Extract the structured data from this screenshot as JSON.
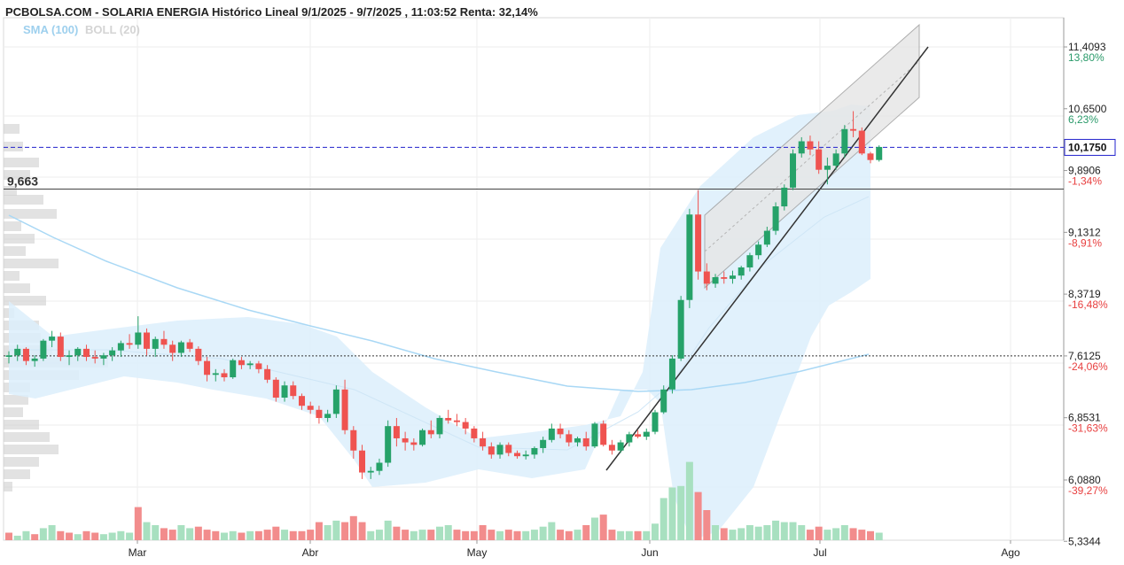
{
  "header": {
    "title": "PCBOLSA.COM - SOLARIA ENERGIA Histórico Lineal 9/1/2025 - 9/7/2025 , 11:03:52 Renta: 32,14%",
    "legend_sma": "SMA (100)",
    "legend_boll": "BOLL (20)"
  },
  "colors": {
    "up": "#26a269",
    "down": "#ef5350",
    "vol_up": "#a8e0c0",
    "vol_down": "#f28c8c",
    "boll_fill": "#dceefb",
    "sma": "#a9d8f5",
    "current_line": "#2222cc"
  },
  "chart_data": {
    "type": "candlestick",
    "y_axis": {
      "ticks": [
        {
          "value": 11.4093,
          "label": "11,4093",
          "pct": "13,80%",
          "dir": "pos"
        },
        {
          "value": 10.65,
          "label": "10,6500",
          "pct": "6,23%",
          "dir": "pos"
        },
        {
          "value": 9.8906,
          "label": "9,8906",
          "pct": "-1,34%",
          "dir": "neg"
        },
        {
          "value": 9.1312,
          "label": "9,1312",
          "pct": "-8,91%",
          "dir": "neg"
        },
        {
          "value": 8.3719,
          "label": "8,3719",
          "pct": "-16,48%",
          "dir": "neg"
        },
        {
          "value": 7.6125,
          "label": "7,6125",
          "pct": "-24,06%",
          "dir": "neg"
        },
        {
          "value": 6.8531,
          "label": "6,8531",
          "pct": "-31,63%",
          "dir": "neg"
        },
        {
          "value": 6.088,
          "label": "6,0880",
          "pct": "-39,27%",
          "dir": "neg"
        },
        {
          "value": 5.3344,
          "label": "5,3344",
          "pct": "",
          "dir": "neg"
        }
      ]
    },
    "x_axis": {
      "labels": [
        "Mar",
        "Abr",
        "May",
        "Jun",
        "Jul",
        "Ago"
      ]
    },
    "current_price": {
      "value": 10.175,
      "label": "10,1750"
    },
    "reference_level": {
      "value": 9.663,
      "label": "9,663"
    },
    "dotted_level": {
      "value": 7.6125
    },
    "candles": [
      [
        7.6,
        7.67,
        7.52,
        7.62
      ],
      [
        7.62,
        7.75,
        7.55,
        7.7
      ],
      [
        7.7,
        7.72,
        7.5,
        7.55
      ],
      [
        7.55,
        7.62,
        7.48,
        7.58
      ],
      [
        7.58,
        7.82,
        7.55,
        7.8
      ],
      [
        7.8,
        7.92,
        7.72,
        7.85
      ],
      [
        7.85,
        7.9,
        7.55,
        7.6
      ],
      [
        7.6,
        7.68,
        7.5,
        7.62
      ],
      [
        7.62,
        7.72,
        7.55,
        7.7
      ],
      [
        7.7,
        7.75,
        7.55,
        7.6
      ],
      [
        7.6,
        7.68,
        7.52,
        7.58
      ],
      [
        7.58,
        7.65,
        7.5,
        7.62
      ],
      [
        7.62,
        7.72,
        7.55,
        7.68
      ],
      [
        7.68,
        7.8,
        7.6,
        7.77
      ],
      [
        7.77,
        7.88,
        7.7,
        7.75
      ],
      [
        7.75,
        8.1,
        7.7,
        7.9
      ],
      [
        7.9,
        7.95,
        7.62,
        7.7
      ],
      [
        7.7,
        7.85,
        7.6,
        7.82
      ],
      [
        7.82,
        7.92,
        7.7,
        7.75
      ],
      [
        7.75,
        7.8,
        7.55,
        7.65
      ],
      [
        7.65,
        7.8,
        7.6,
        7.78
      ],
      [
        7.78,
        7.82,
        7.66,
        7.7
      ],
      [
        7.7,
        7.73,
        7.5,
        7.55
      ],
      [
        7.55,
        7.6,
        7.3,
        7.38
      ],
      [
        7.38,
        7.45,
        7.3,
        7.4
      ],
      [
        7.4,
        7.45,
        7.3,
        7.35
      ],
      [
        7.35,
        7.58,
        7.33,
        7.56
      ],
      [
        7.56,
        7.6,
        7.45,
        7.5
      ],
      [
        7.5,
        7.55,
        7.45,
        7.52
      ],
      [
        7.52,
        7.55,
        7.4,
        7.45
      ],
      [
        7.45,
        7.5,
        7.28,
        7.32
      ],
      [
        7.32,
        7.35,
        7.05,
        7.1
      ],
      [
        7.1,
        7.3,
        7.05,
        7.25
      ],
      [
        7.25,
        7.3,
        7.08,
        7.12
      ],
      [
        7.12,
        7.15,
        6.95,
        7.0
      ],
      [
        7.0,
        7.05,
        6.9,
        6.95
      ],
      [
        6.95,
        7.0,
        6.78,
        6.85
      ],
      [
        6.85,
        6.95,
        6.8,
        6.9
      ],
      [
        6.9,
        7.25,
        6.85,
        7.2
      ],
      [
        7.2,
        7.32,
        6.65,
        6.7
      ],
      [
        6.7,
        6.75,
        6.35,
        6.45
      ],
      [
        6.45,
        6.52,
        6.1,
        6.18
      ],
      [
        6.18,
        6.25,
        6.1,
        6.2
      ],
      [
        6.2,
        6.35,
        6.15,
        6.3
      ],
      [
        6.3,
        6.82,
        6.25,
        6.75
      ],
      [
        6.75,
        6.85,
        6.5,
        6.6
      ],
      [
        6.6,
        6.68,
        6.45,
        6.55
      ],
      [
        6.55,
        6.6,
        6.45,
        6.52
      ],
      [
        6.52,
        6.72,
        6.5,
        6.7
      ],
      [
        6.7,
        6.82,
        6.6,
        6.65
      ],
      [
        6.65,
        6.88,
        6.6,
        6.85
      ],
      [
        6.85,
        6.95,
        6.78,
        6.82
      ],
      [
        6.82,
        6.9,
        6.75,
        6.8
      ],
      [
        6.8,
        6.85,
        6.65,
        6.72
      ],
      [
        6.72,
        6.75,
        6.55,
        6.6
      ],
      [
        6.6,
        6.68,
        6.45,
        6.5
      ],
      [
        6.5,
        6.55,
        6.35,
        6.4
      ],
      [
        6.4,
        6.55,
        6.35,
        6.52
      ],
      [
        6.52,
        6.55,
        6.38,
        6.42
      ],
      [
        6.42,
        6.45,
        6.35,
        6.38
      ],
      [
        6.38,
        6.45,
        6.34,
        6.4
      ],
      [
        6.4,
        6.5,
        6.35,
        6.48
      ],
      [
        6.48,
        6.62,
        6.42,
        6.58
      ],
      [
        6.58,
        6.78,
        6.55,
        6.72
      ],
      [
        6.72,
        6.78,
        6.6,
        6.65
      ],
      [
        6.65,
        6.7,
        6.5,
        6.55
      ],
      [
        6.55,
        6.62,
        6.5,
        6.6
      ],
      [
        6.6,
        6.68,
        6.45,
        6.5
      ],
      [
        6.5,
        6.8,
        6.48,
        6.78
      ],
      [
        6.78,
        6.82,
        6.5,
        6.52
      ],
      [
        6.52,
        6.58,
        6.4,
        6.45
      ],
      [
        6.45,
        6.58,
        6.42,
        6.55
      ],
      [
        6.55,
        6.68,
        6.5,
        6.65
      ],
      [
        6.65,
        6.7,
        6.6,
        6.62
      ],
      [
        6.62,
        6.72,
        6.58,
        6.68
      ],
      [
        6.68,
        6.95,
        6.65,
        6.92
      ],
      [
        6.92,
        7.25,
        6.9,
        7.2
      ],
      [
        7.2,
        7.62,
        7.15,
        7.58
      ],
      [
        7.58,
        8.35,
        7.55,
        8.3
      ],
      [
        8.3,
        9.42,
        8.2,
        9.35
      ],
      [
        9.35,
        9.65,
        8.55,
        8.65
      ],
      [
        8.65,
        8.75,
        8.42,
        8.5
      ],
      [
        8.5,
        8.62,
        8.45,
        8.58
      ],
      [
        8.58,
        8.65,
        8.5,
        8.56
      ],
      [
        8.56,
        8.66,
        8.5,
        8.6
      ],
      [
        8.6,
        8.72,
        8.55,
        8.7
      ],
      [
        8.7,
        8.88,
        8.65,
        8.85
      ],
      [
        8.85,
        9.02,
        8.8,
        8.98
      ],
      [
        8.98,
        9.2,
        8.95,
        9.15
      ],
      [
        9.15,
        9.5,
        9.1,
        9.45
      ],
      [
        9.45,
        9.72,
        9.4,
        9.68
      ],
      [
        9.68,
        10.15,
        9.65,
        10.1
      ],
      [
        10.1,
        10.3,
        10.05,
        10.25
      ],
      [
        10.25,
        10.32,
        10.08,
        10.15
      ],
      [
        10.15,
        10.25,
        9.85,
        9.9
      ],
      [
        9.9,
        10.05,
        9.72,
        9.95
      ],
      [
        9.95,
        10.15,
        9.9,
        10.1
      ],
      [
        10.1,
        10.45,
        10.05,
        10.4
      ],
      [
        10.4,
        10.62,
        10.3,
        10.38
      ],
      [
        10.38,
        10.42,
        10.08,
        10.1
      ],
      [
        10.1,
        10.12,
        9.98,
        10.02
      ],
      [
        10.02,
        10.2,
        10.0,
        10.18
      ]
    ],
    "volume": [
      [
        0.05,
        0
      ],
      [
        0.03,
        1
      ],
      [
        0.06,
        1
      ],
      [
        0.04,
        0
      ],
      [
        0.08,
        1
      ],
      [
        0.1,
        1
      ],
      [
        0.06,
        0
      ],
      [
        0.05,
        0
      ],
      [
        0.04,
        1
      ],
      [
        0.06,
        0
      ],
      [
        0.05,
        0
      ],
      [
        0.04,
        1
      ],
      [
        0.05,
        1
      ],
      [
        0.06,
        1
      ],
      [
        0.05,
        1
      ],
      [
        0.22,
        0
      ],
      [
        0.12,
        1
      ],
      [
        0.1,
        1
      ],
      [
        0.08,
        0
      ],
      [
        0.07,
        0
      ],
      [
        0.1,
        1
      ],
      [
        0.08,
        1
      ],
      [
        0.09,
        0
      ],
      [
        0.07,
        0
      ],
      [
        0.06,
        0
      ],
      [
        0.05,
        1
      ],
      [
        0.06,
        1
      ],
      [
        0.05,
        0
      ],
      [
        0.06,
        1
      ],
      [
        0.06,
        0
      ],
      [
        0.07,
        0
      ],
      [
        0.09,
        0
      ],
      [
        0.07,
        1
      ],
      [
        0.06,
        0
      ],
      [
        0.06,
        0
      ],
      [
        0.07,
        0
      ],
      [
        0.12,
        0
      ],
      [
        0.1,
        1
      ],
      [
        0.13,
        1
      ],
      [
        0.12,
        0
      ],
      [
        0.16,
        0
      ],
      [
        0.12,
        0
      ],
      [
        0.06,
        1
      ],
      [
        0.07,
        1
      ],
      [
        0.13,
        1
      ],
      [
        0.09,
        0
      ],
      [
        0.07,
        0
      ],
      [
        0.06,
        1
      ],
      [
        0.07,
        1
      ],
      [
        0.07,
        0
      ],
      [
        0.09,
        1
      ],
      [
        0.1,
        1
      ],
      [
        0.07,
        0
      ],
      [
        0.06,
        0
      ],
      [
        0.06,
        0
      ],
      [
        0.1,
        0
      ],
      [
        0.07,
        0
      ],
      [
        0.06,
        1
      ],
      [
        0.07,
        0
      ],
      [
        0.06,
        0
      ],
      [
        0.06,
        1
      ],
      [
        0.07,
        1
      ],
      [
        0.09,
        1
      ],
      [
        0.12,
        1
      ],
      [
        0.07,
        0
      ],
      [
        0.06,
        0
      ],
      [
        0.07,
        1
      ],
      [
        0.1,
        0
      ],
      [
        0.15,
        1
      ],
      [
        0.17,
        0
      ],
      [
        0.07,
        0
      ],
      [
        0.06,
        1
      ],
      [
        0.06,
        1
      ],
      [
        0.06,
        0
      ],
      [
        0.06,
        1
      ],
      [
        0.11,
        1
      ],
      [
        0.28,
        1
      ],
      [
        0.35,
        1
      ],
      [
        0.36,
        1
      ],
      [
        0.52,
        1
      ],
      [
        0.32,
        0
      ],
      [
        0.2,
        0
      ],
      [
        0.1,
        1
      ],
      [
        0.08,
        0
      ],
      [
        0.07,
        1
      ],
      [
        0.08,
        1
      ],
      [
        0.1,
        1
      ],
      [
        0.09,
        1
      ],
      [
        0.1,
        1
      ],
      [
        0.13,
        1
      ],
      [
        0.12,
        1
      ],
      [
        0.12,
        1
      ],
      [
        0.1,
        1
      ],
      [
        0.07,
        0
      ],
      [
        0.09,
        0
      ],
      [
        0.07,
        1
      ],
      [
        0.08,
        1
      ],
      [
        0.1,
        1
      ],
      [
        0.08,
        0
      ],
      [
        0.07,
        0
      ],
      [
        0.06,
        0
      ],
      [
        0.05,
        1
      ]
    ]
  }
}
